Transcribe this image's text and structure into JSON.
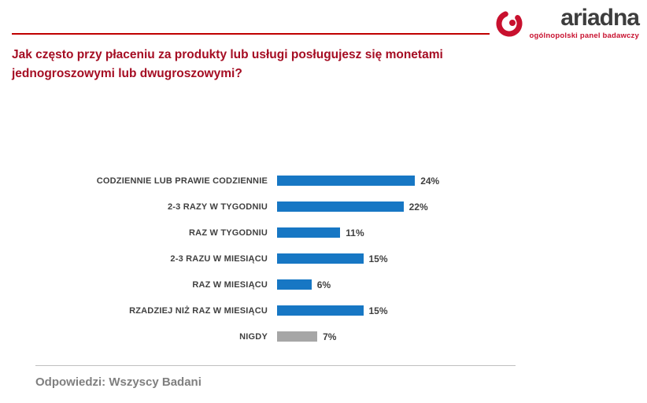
{
  "logo": {
    "name": "ariadna",
    "tagline": "ogólnopolski panel badawczy",
    "icon": "ariadna-spiral-a-icon",
    "brand_color": "#C8102E"
  },
  "colors": {
    "divider_red": "#C00000",
    "title_red": "#A50D23",
    "bar_blue": "#1777C4",
    "bar_gray": "#A6A6A6",
    "footer_gray": "#7F7F7F"
  },
  "title": "Jak często przy płaceniu za produkty lub usługi posługujesz się monetami jednogroszowymi lub dwugroszowymi?",
  "footer": "Odpowiedzi: Wszyscy Badani",
  "chart_data": {
    "type": "bar",
    "orientation": "horizontal",
    "title": "Jak często przy płaceniu za produkty lub usługi posługujesz się monetami jednogroszowymi lub dwugroszowymi?",
    "xlabel": "",
    "ylabel": "",
    "xlim": [
      0,
      26
    ],
    "grid": false,
    "legend": "none",
    "categories": [
      "CODZIENNIE LUB PRAWIE CODZIENNIE",
      "2-3 RAZY W TYGODNIU",
      "RAZ W TYGODNIU",
      "2-3 RAZU W MIESIĄCU",
      "RAZ W MIESIĄCU",
      "RZADZIEJ NIŻ RAZ W MIESIĄCU",
      "NIGDY"
    ],
    "values": [
      24,
      22,
      11,
      15,
      6,
      15,
      7
    ],
    "value_labels": [
      "24%",
      "22%",
      "11%",
      "15%",
      "6%",
      "15%",
      "7%"
    ],
    "bar_colors": [
      "#1777C4",
      "#1777C4",
      "#1777C4",
      "#1777C4",
      "#1777C4",
      "#1777C4",
      "#A6A6A6"
    ]
  }
}
